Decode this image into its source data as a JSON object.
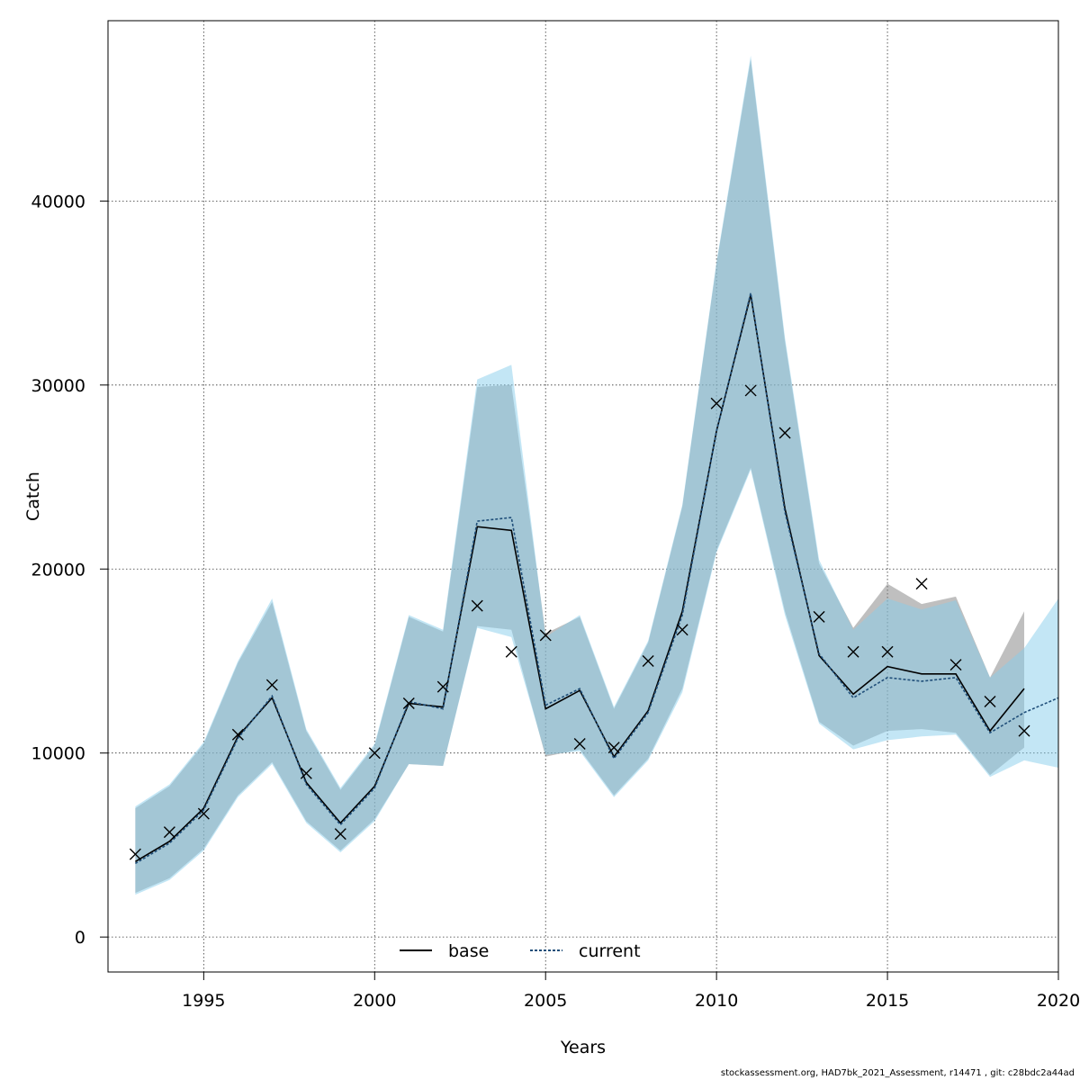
{
  "footer_text": "stockassessment.org, HAD7bk_2021_Assessment, r14471 , git: c28bdc2a44ad",
  "chart_data": {
    "type": "area",
    "xlabel": "Years",
    "ylabel": "Catch",
    "xlim": [
      1992.2,
      2020
    ],
    "ylim": [
      -1900,
      49800
    ],
    "x_ticks": [
      1995,
      2000,
      2005,
      2010,
      2015,
      2020
    ],
    "y_ticks": [
      0,
      10000,
      20000,
      30000,
      40000
    ],
    "grid": true,
    "legend_position": "bottom-center",
    "colors": {
      "base_band": "#808080",
      "current_band": "#87ceeb",
      "base_line": "#000000",
      "current_line": "#1f4e79",
      "observed_marker": "#000000"
    },
    "series": [
      {
        "name": "base",
        "line_style": "solid",
        "years": [
          1993,
          1994,
          1995,
          1996,
          1997,
          1998,
          1999,
          2000,
          2001,
          2002,
          2003,
          2004,
          2005,
          2006,
          2007,
          2008,
          2009,
          2010,
          2011,
          2012,
          2013,
          2014,
          2015,
          2016,
          2017,
          2018,
          2019
        ],
        "estimate": [
          4100,
          5200,
          7000,
          10900,
          13000,
          8400,
          6200,
          8200,
          12700,
          12500,
          22300,
          22100,
          12400,
          13400,
          9800,
          12300,
          17700,
          27500,
          34900,
          23300,
          15300,
          13200,
          14700,
          14300,
          14300,
          11200,
          13500
        ],
        "lower": [
          2400,
          3200,
          4800,
          7700,
          9500,
          6300,
          4700,
          6400,
          9400,
          9300,
          16900,
          16700,
          9800,
          10200,
          7700,
          9700,
          13500,
          21000,
          25500,
          17700,
          11700,
          10400,
          11200,
          11300,
          11100,
          8800,
          10300
        ],
        "upper": [
          7000,
          8200,
          10500,
          14900,
          18200,
          11200,
          8000,
          10400,
          17400,
          16600,
          29900,
          30000,
          16500,
          17400,
          12400,
          16000,
          23400,
          36600,
          47700,
          32400,
          20300,
          16800,
          19200,
          18100,
          18500,
          14100,
          17700
        ]
      },
      {
        "name": "current",
        "line_style": "dotted",
        "years": [
          1993,
          1994,
          1995,
          1996,
          1997,
          1998,
          1999,
          2000,
          2001,
          2002,
          2003,
          2004,
          2005,
          2006,
          2007,
          2008,
          2009,
          2010,
          2011,
          2012,
          2013,
          2014,
          2015,
          2016,
          2017,
          2018,
          2019,
          2020
        ],
        "estimate": [
          4000,
          5100,
          6900,
          10800,
          13100,
          8300,
          6100,
          8100,
          12800,
          12400,
          22600,
          22800,
          12600,
          13500,
          9700,
          12200,
          17500,
          27500,
          35000,
          23100,
          15400,
          13000,
          14100,
          13900,
          14100,
          11100,
          12200,
          13000
        ],
        "lower": [
          2300,
          3100,
          4700,
          7600,
          9400,
          6200,
          4600,
          6300,
          9400,
          9300,
          16800,
          16300,
          9900,
          10100,
          7600,
          9600,
          13300,
          20900,
          25400,
          17500,
          11600,
          10200,
          10700,
          10900,
          11000,
          8700,
          9600,
          9200
        ],
        "upper": [
          7100,
          8300,
          10600,
          15000,
          18400,
          11300,
          8100,
          10500,
          17500,
          16700,
          30300,
          31100,
          16300,
          17500,
          12500,
          16100,
          23500,
          36700,
          47900,
          32600,
          20500,
          16700,
          18400,
          17800,
          18300,
          14100,
          15700,
          18400
        ]
      }
    ],
    "observed": {
      "marker": "x",
      "years": [
        1993,
        1994,
        1995,
        1996,
        1997,
        1998,
        1999,
        2000,
        2001,
        2002,
        2003,
        2004,
        2005,
        2006,
        2007,
        2008,
        2009,
        2010,
        2011,
        2012,
        2013,
        2014,
        2015,
        2016,
        2017,
        2018,
        2019
      ],
      "values": [
        4500,
        5700,
        6700,
        11000,
        13700,
        8900,
        5600,
        10000,
        12700,
        13600,
        18000,
        15500,
        16400,
        10500,
        10300,
        15000,
        16700,
        29000,
        29700,
        27400,
        17400,
        15500,
        15500,
        19200,
        14800,
        12800,
        11200
      ]
    }
  }
}
